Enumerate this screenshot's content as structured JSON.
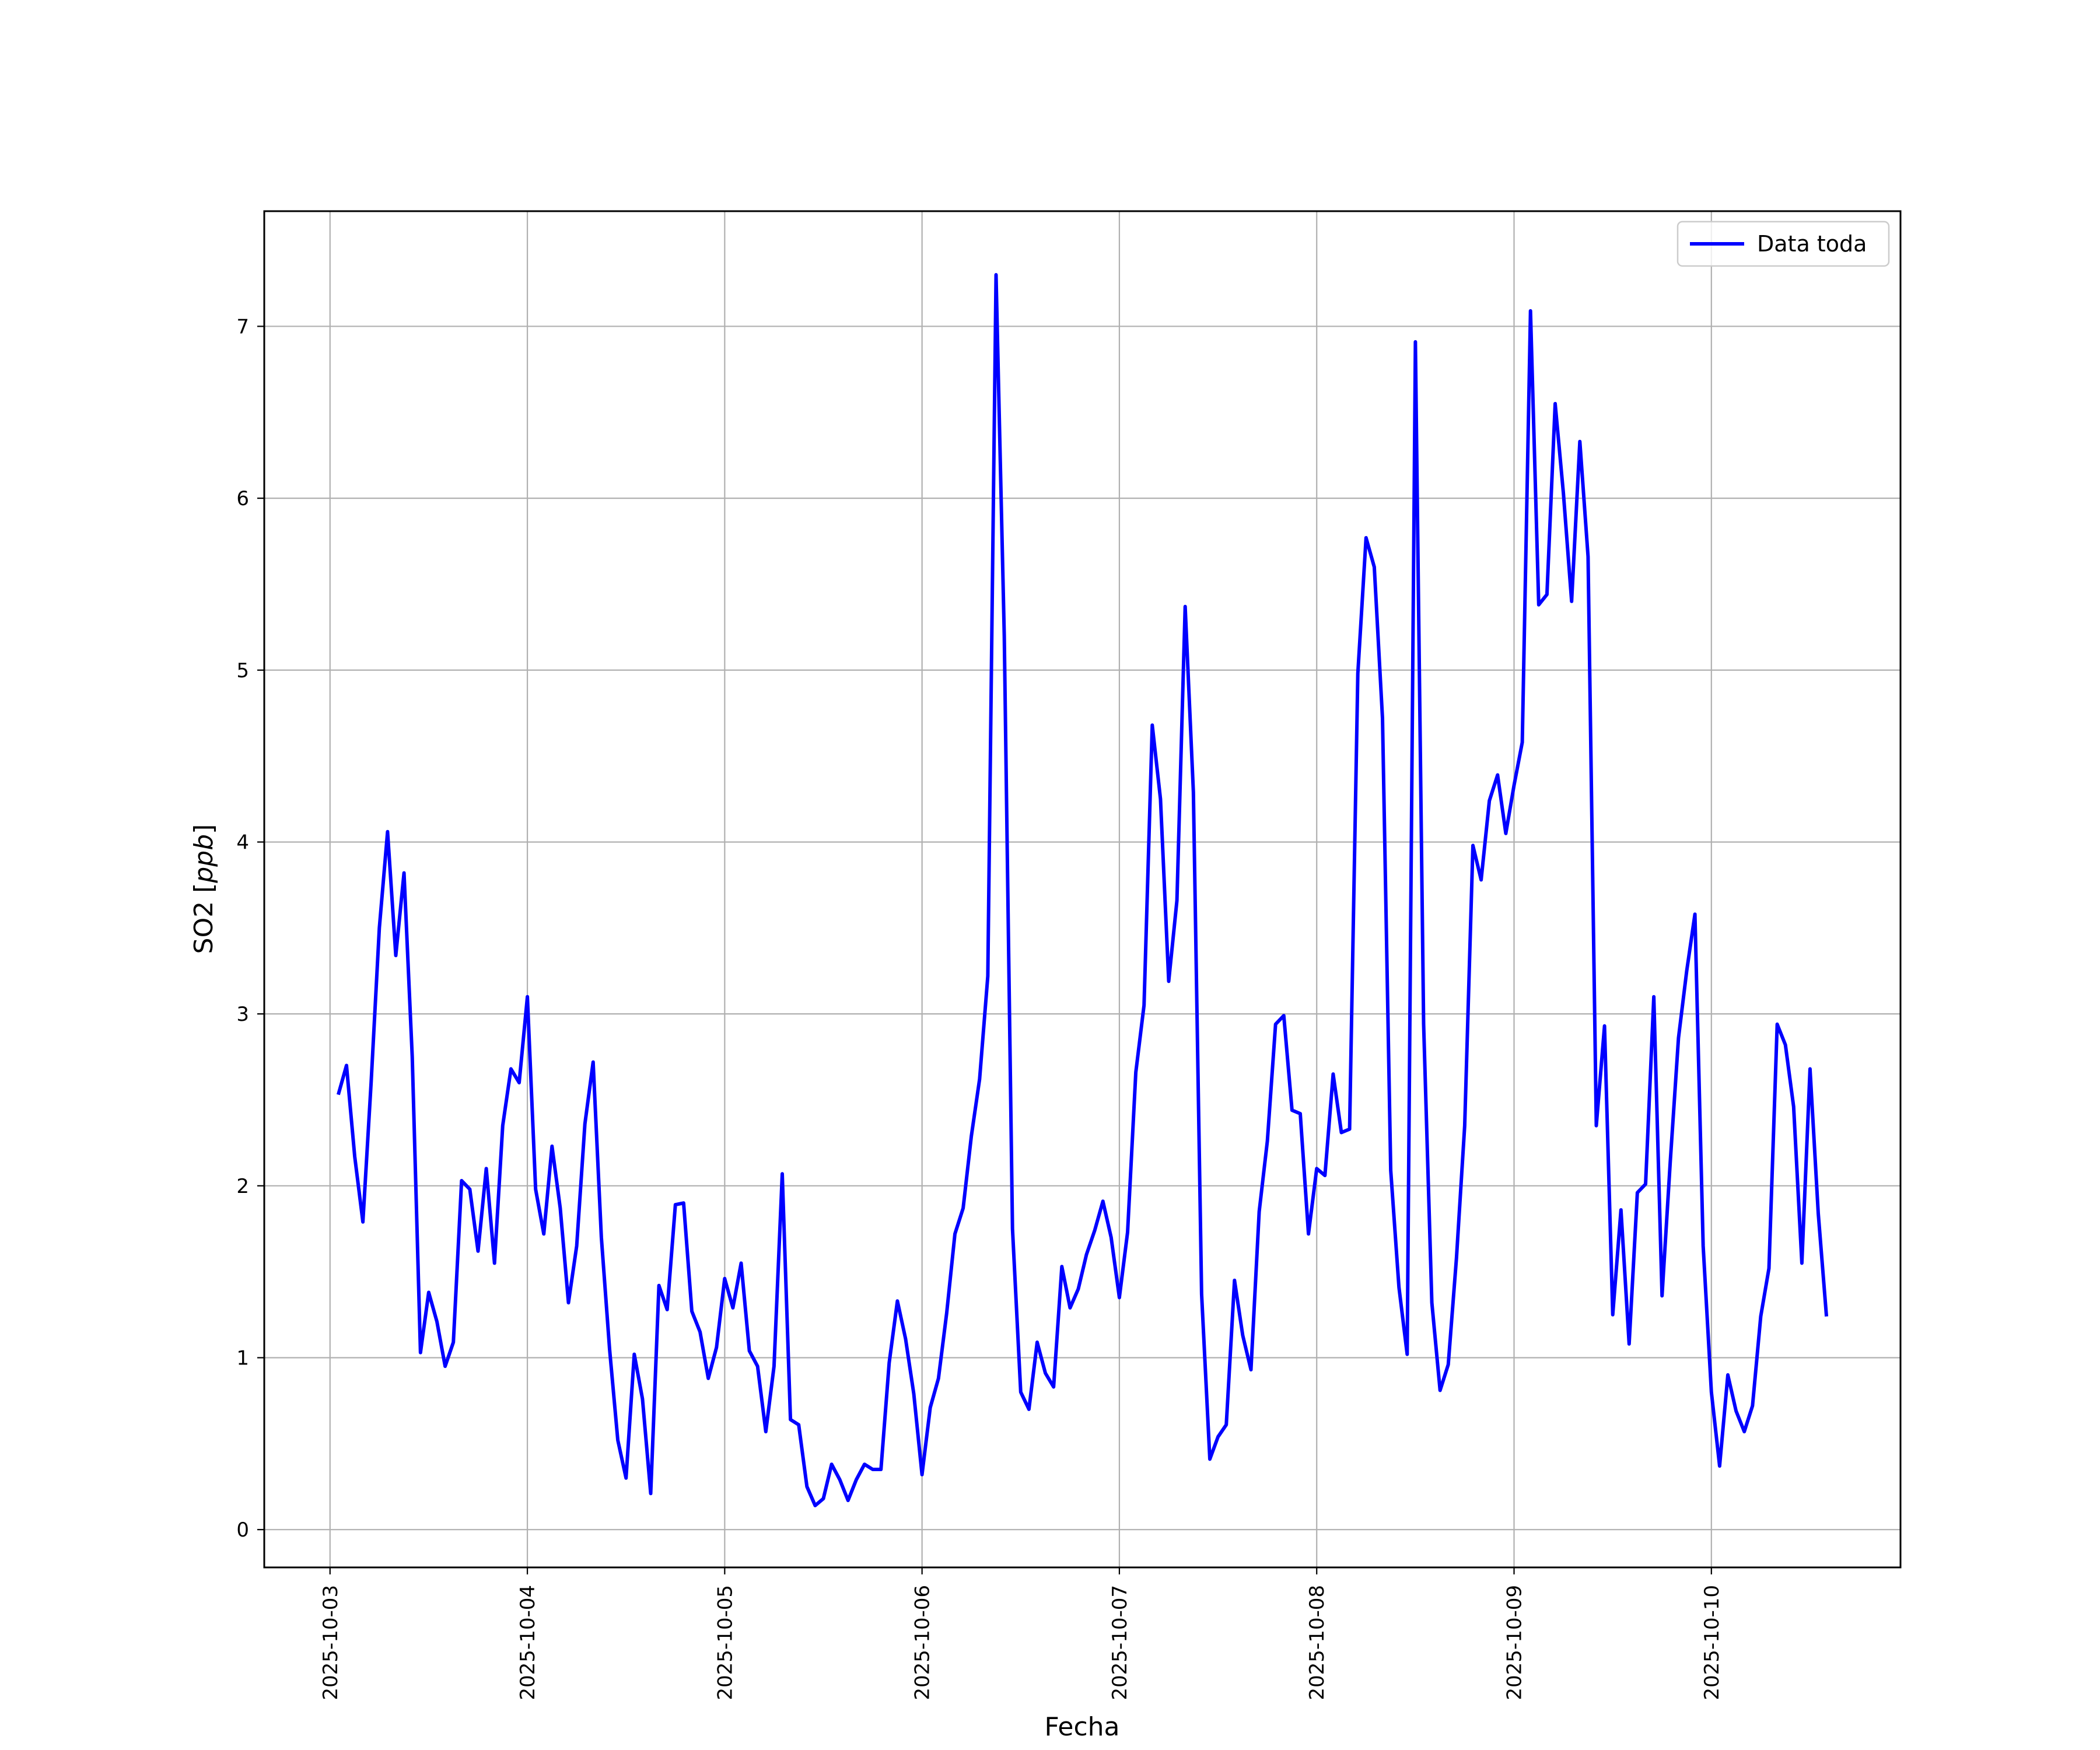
{
  "chart_data": {
    "type": "line",
    "title": "",
    "xlabel": "Fecha",
    "ylabel": "SO2 [ppb]",
    "ylabel_main": "SO2 ",
    "ylabel_unit": "ppb",
    "x_ticks": [
      "2025-10-03",
      "2025-10-04",
      "2025-10-05",
      "2025-10-06",
      "2025-10-07",
      "2025-10-08",
      "2025-10-09",
      "2025-10-10"
    ],
    "y_ticks": [
      0,
      1,
      2,
      3,
      4,
      5,
      6,
      7
    ],
    "xlim": [
      "2025-10-02T16:00",
      "2025-10-10T23:00"
    ],
    "ylim": [
      -0.22,
      7.67
    ],
    "grid": true,
    "legend_position": "top-right",
    "series": [
      {
        "name": "Data toda",
        "color": "#0000ff",
        "start": "2025-10-03T01:00",
        "step_hours": 1,
        "values": [
          2.53,
          2.7,
          2.17,
          1.79,
          2.6,
          3.5,
          4.06,
          3.34,
          3.82,
          2.75,
          1.03,
          1.38,
          1.21,
          0.95,
          1.09,
          2.03,
          1.98,
          1.62,
          2.1,
          1.55,
          2.35,
          2.68,
          2.6,
          3.1,
          1.98,
          1.72,
          2.23,
          1.87,
          1.32,
          1.65,
          2.36,
          2.72,
          1.7,
          1.05,
          0.52,
          0.3,
          1.02,
          0.76,
          0.21,
          1.42,
          1.28,
          1.89,
          1.9,
          1.27,
          1.15,
          0.88,
          1.06,
          1.46,
          1.29,
          1.55,
          1.04,
          0.95,
          0.57,
          0.95,
          2.07,
          0.64,
          0.61,
          0.25,
          0.14,
          0.18,
          0.38,
          0.29,
          0.17,
          0.29,
          0.38,
          0.35,
          0.35,
          0.97,
          1.33,
          1.11,
          0.79,
          0.32,
          0.71,
          0.88,
          1.26,
          1.72,
          1.87,
          2.29,
          2.62,
          3.22,
          7.3,
          5.2,
          1.75,
          0.8,
          0.7,
          1.09,
          0.91,
          0.83,
          1.53,
          1.29,
          1.4,
          1.6,
          1.74,
          1.91,
          1.7,
          1.35,
          1.73,
          2.66,
          3.05,
          4.68,
          4.25,
          3.19,
          3.66,
          5.37,
          4.29,
          1.37,
          0.41,
          0.54,
          0.61,
          1.45,
          1.13,
          0.93,
          1.85,
          2.26,
          2.94,
          2.99,
          2.44,
          2.42,
          1.72,
          2.1,
          2.06,
          2.65,
          2.31,
          2.33,
          4.98,
          5.77,
          5.6,
          4.72,
          2.09,
          1.41,
          1.02,
          6.91,
          2.94,
          1.32,
          0.81,
          0.96,
          1.58,
          2.35,
          3.98,
          3.78,
          4.24,
          4.39,
          4.05,
          4.33,
          4.58,
          7.09,
          5.38,
          5.44,
          6.55,
          6.03,
          5.4,
          6.33,
          5.66,
          2.35,
          2.93,
          1.25,
          1.86,
          1.08,
          1.96,
          2.01,
          3.1,
          1.36,
          2.14,
          2.86,
          3.25,
          3.58,
          1.65,
          0.8,
          0.37,
          0.9,
          0.69,
          0.57,
          0.72,
          1.24,
          1.52,
          2.94,
          2.82,
          2.46,
          1.55,
          2.68,
          1.84,
          1.24
        ]
      }
    ]
  }
}
